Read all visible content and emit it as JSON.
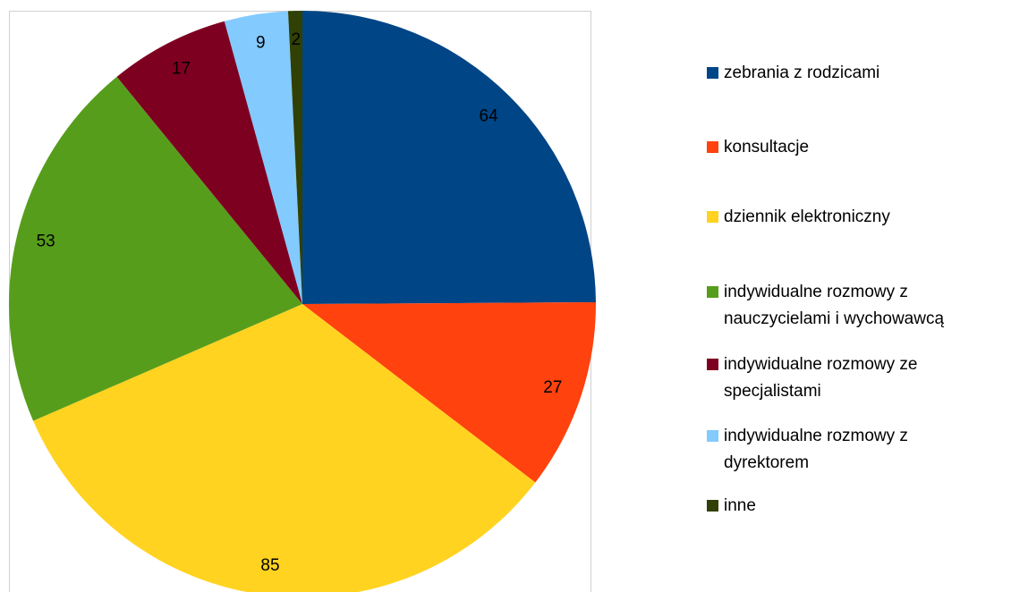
{
  "chart_data": {
    "type": "pie",
    "categories": [
      "zebrania z rodzicami",
      "konsultacje",
      "dziennik elektroniczny",
      "indywidualne rozmowy z nauczycielami i wychowawcą",
      "indywidualne rozmowy ze specjalistami",
      "indywidualne rozmowy z dyrektorem",
      "inne"
    ],
    "values": [
      64,
      27,
      85,
      53,
      17,
      9,
      2
    ],
    "colors": [
      "#004586",
      "#ff420e",
      "#ffd320",
      "#579d1c",
      "#7e0021",
      "#83caff",
      "#314004"
    ],
    "legend": "right"
  }
}
